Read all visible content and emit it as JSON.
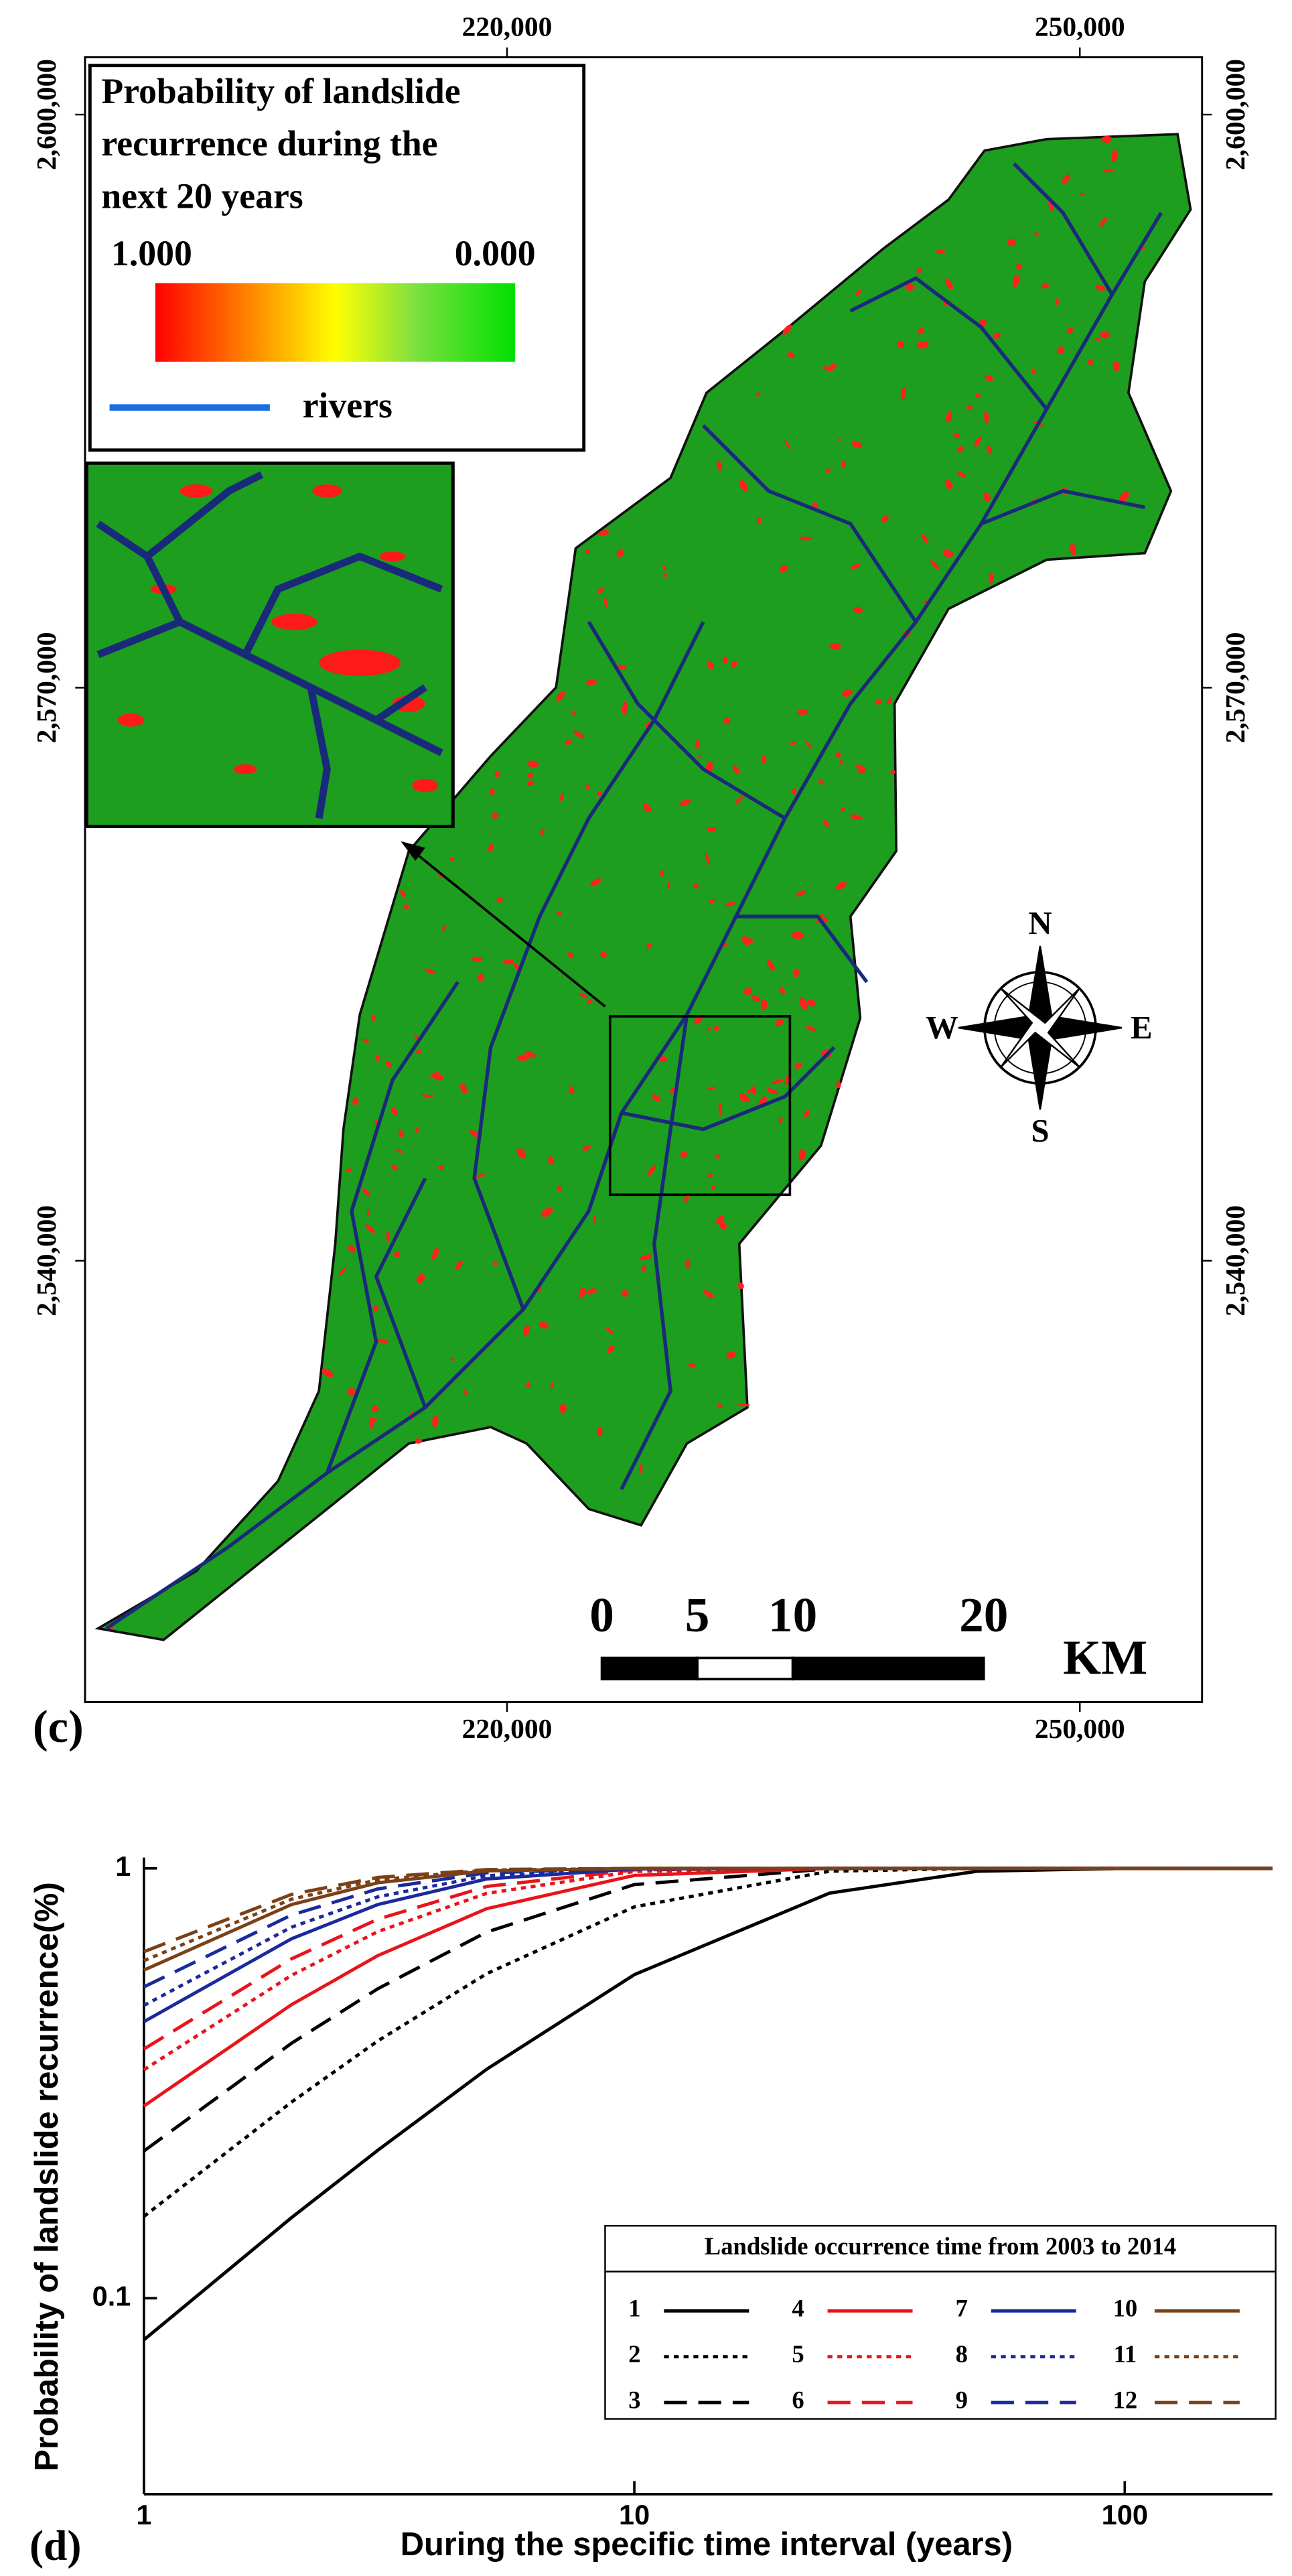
{
  "map": {
    "label": "(c)",
    "legend": {
      "title": [
        "Probability of landslide",
        "recurrence during the",
        "next 20 years"
      ],
      "max_label": "1.000",
      "min_label": "0.000",
      "rivers_label": "rivers"
    },
    "xlim": [
      197900,
      256400
    ],
    "ylim": [
      2516900,
      2603000
    ],
    "xticks": [
      {
        "value": 220000,
        "label": "220,000"
      },
      {
        "value": 250000,
        "label": "250,000"
      }
    ],
    "yticks": [
      {
        "value": 2600000,
        "label": "2,600,000"
      },
      {
        "value": 2570000,
        "label": "2,570,000"
      },
      {
        "value": 2540000,
        "label": "2,540,000"
      }
    ],
    "compass": {
      "n": "N",
      "e": "E",
      "s": "S",
      "w": "W"
    },
    "scale_bar": {
      "ticks": [
        0,
        5,
        10,
        20
      ],
      "unit": "KM"
    }
  },
  "chart_data": {
    "type": "line",
    "label": "(d)",
    "x_label": "During the specific time interval (years)",
    "y_label": "Probability of landslide recurrence(%)",
    "xscale": "log",
    "yscale": "log",
    "xlim": [
      1,
      200
    ],
    "ylim": [
      0.035,
      1.06
    ],
    "xticks": [
      1,
      10,
      100
    ],
    "yticks": [
      0.1,
      1
    ],
    "legend_title": "Landslide occurrence time from 2003 to 2014",
    "x": [
      1,
      2,
      3,
      5,
      10,
      25,
      50,
      100,
      200
    ],
    "series": [
      {
        "name": "1",
        "color": "#000000",
        "dash": "solid",
        "values": [
          0.08,
          0.154,
          0.221,
          0.341,
          0.566,
          0.876,
          0.985,
          1,
          1
        ]
      },
      {
        "name": "2",
        "color": "#000000",
        "dash": "dotted",
        "values": [
          0.155,
          0.286,
          0.397,
          0.569,
          0.814,
          0.985,
          1,
          1,
          1
        ]
      },
      {
        "name": "3",
        "color": "#000000",
        "dash": "dashed",
        "values": [
          0.22,
          0.392,
          0.525,
          0.711,
          0.917,
          0.998,
          1,
          1,
          1
        ]
      },
      {
        "name": "4",
        "color": "#e8141b",
        "dash": "solid",
        "values": [
          0.28,
          0.482,
          0.627,
          0.806,
          0.963,
          1,
          1,
          1,
          1
        ]
      },
      {
        "name": "5",
        "color": "#e8141b",
        "dash": "dotted",
        "values": [
          0.34,
          0.564,
          0.713,
          0.875,
          0.984,
          1,
          1,
          1,
          1
        ]
      },
      {
        "name": "6",
        "color": "#e8141b",
        "dash": "dashed",
        "values": [
          0.38,
          0.616,
          0.762,
          0.908,
          0.992,
          1,
          1,
          1,
          1
        ]
      },
      {
        "name": "7",
        "color": "#1a2a9c",
        "dash": "solid",
        "values": [
          0.44,
          0.686,
          0.824,
          0.945,
          0.997,
          1,
          1,
          1,
          1
        ]
      },
      {
        "name": "8",
        "color": "#1a2a9c",
        "dash": "dotted",
        "values": [
          0.48,
          0.73,
          0.859,
          0.962,
          0.999,
          1,
          1,
          1,
          1
        ]
      },
      {
        "name": "9",
        "color": "#1a2a9c",
        "dash": "dashed",
        "values": [
          0.53,
          0.779,
          0.896,
          0.977,
          1,
          1,
          1,
          1,
          1
        ]
      },
      {
        "name": "10",
        "color": "#7a4016",
        "dash": "solid",
        "values": [
          0.58,
          0.824,
          0.926,
          0.987,
          1,
          1,
          1,
          1,
          1
        ]
      },
      {
        "name": "11",
        "color": "#7a4016",
        "dash": "dotted",
        "values": [
          0.61,
          0.848,
          0.941,
          0.991,
          1,
          1,
          1,
          1,
          1
        ]
      },
      {
        "name": "12",
        "color": "#7a4016",
        "dash": "dashed",
        "values": [
          0.64,
          0.87,
          0.953,
          0.994,
          1,
          1,
          1,
          1,
          1
        ]
      }
    ]
  }
}
